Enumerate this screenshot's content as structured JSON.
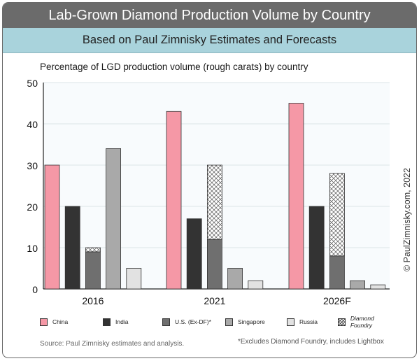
{
  "header": {
    "title": "Lab-Grown Diamond Production Volume by Country",
    "subtitle": "Based on Paul Zimnisky Estimates and Forecasts"
  },
  "chart_data": {
    "type": "bar",
    "title": "Lab-Grown Diamond Production Volume by Country",
    "subtitle": "Based on Paul Zimnisky Estimates and Forecasts",
    "ylabel": "Percentage of LGD production volume (rough carats) by country",
    "xlabel": "",
    "ylim": [
      0,
      50
    ],
    "yticks": [
      "0",
      "10",
      "20",
      "30",
      "40",
      "50"
    ],
    "grid": true,
    "legend_position": "bottom",
    "categories": [
      "2016",
      "2021",
      "2026F"
    ],
    "series": [
      {
        "name": "China",
        "values": [
          30,
          43,
          45
        ],
        "color": "#f598a6"
      },
      {
        "name": "India",
        "values": [
          20,
          17,
          20
        ],
        "color": "#333333"
      },
      {
        "name": "U.S. (Ex-DF)*",
        "values": [
          9,
          12,
          8
        ],
        "color": "#6f6f6f"
      },
      {
        "name": "Diamond Foundry",
        "values": [
          1,
          18,
          20
        ],
        "color": "#ffffff",
        "pattern": "crosshatch",
        "stacked_on": "U.S. (Ex-DF)*"
      },
      {
        "name": "Singapore",
        "values": [
          34,
          5,
          2
        ],
        "color": "#a9a9a9"
      },
      {
        "name": "Russia",
        "values": [
          5,
          2,
          1
        ],
        "color": "#e2e2e2"
      }
    ]
  },
  "legend": [
    {
      "label": "China",
      "color": "#f598a6",
      "italic": false
    },
    {
      "label": "India",
      "color": "#333333",
      "italic": false
    },
    {
      "label": "U.S. (Ex-DF)*",
      "color": "#6f6f6f",
      "italic": false
    },
    {
      "label": "Singapore",
      "color": "#a9a9a9",
      "italic": false
    },
    {
      "label": "Russia",
      "color": "#e2e2e2",
      "italic": false
    },
    {
      "label": "Diamond Foundry",
      "color": "#ffffff",
      "italic": true
    }
  ],
  "footer": {
    "source": "Source: Paul Zimnisky estimates and analysis.",
    "note": "*Excludes Diamond Foundry, includes Lightbox",
    "copyright": "© PaulZimnisky.com, 2022"
  }
}
